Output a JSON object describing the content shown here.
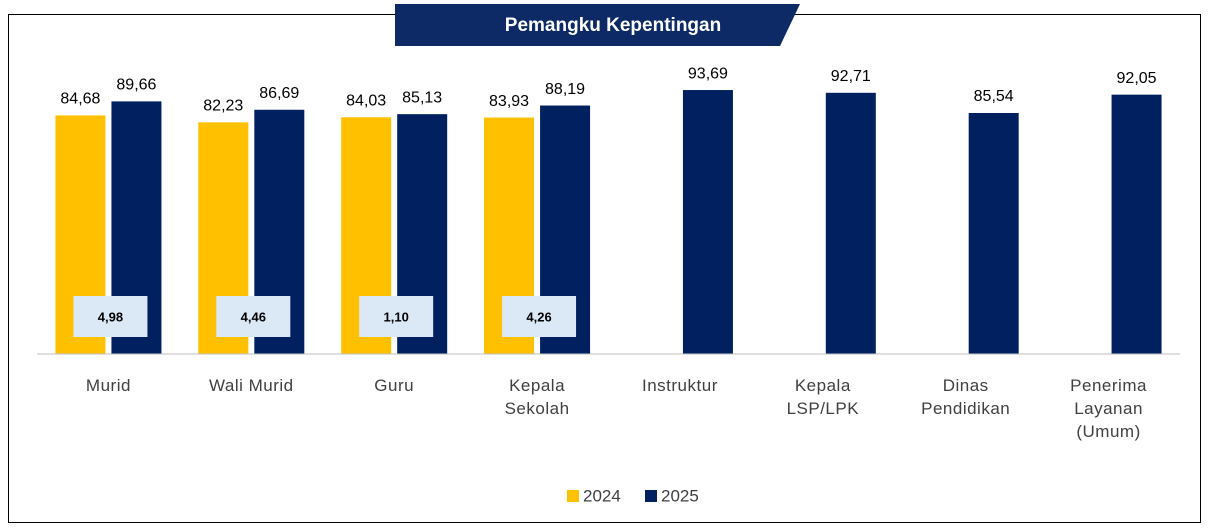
{
  "chart_data": {
    "type": "bar",
    "title": "Pemangku Kepentingan",
    "categories": [
      "Murid",
      "Wali Murid",
      "Guru",
      "Kepala Sekolah",
      "Instruktur",
      "Kepala LSP/LPK",
      "Dinas Pendidikan",
      "Penerima Layanan (Umum)"
    ],
    "series": [
      {
        "name": "2024",
        "color": "#ffc000",
        "values": [
          84.68,
          82.23,
          84.03,
          83.93,
          null,
          null,
          null,
          null
        ],
        "value_labels": [
          "84,68",
          "82,23",
          "84,03",
          "83,93",
          null,
          null,
          null,
          null
        ]
      },
      {
        "name": "2025",
        "color": "#002060",
        "values": [
          89.66,
          86.69,
          85.13,
          88.19,
          93.69,
          92.71,
          85.54,
          92.05
        ],
        "value_labels": [
          "89,66",
          "86,69",
          "85,13",
          "88,19",
          "93,69",
          "92,71",
          "85,54",
          "92,05"
        ]
      }
    ],
    "differences": {
      "values": [
        4.98,
        4.46,
        1.1,
        4.26,
        null,
        null,
        null,
        null
      ],
      "value_labels": [
        "4,98",
        "4,46",
        "1,10",
        "4,26",
        null,
        null,
        null,
        null
      ]
    },
    "ylim": [
      0,
      115
    ],
    "legend": "bottom"
  }
}
